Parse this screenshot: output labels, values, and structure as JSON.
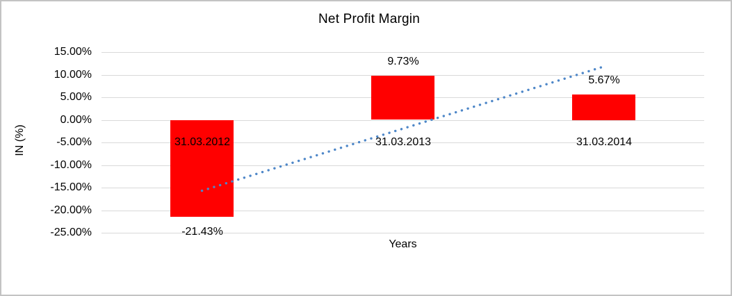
{
  "chart_data": {
    "type": "bar",
    "title": "Net Profit Margin",
    "xlabel": "Years",
    "ylabel": "IN (%)",
    "categories": [
      "31.03.2012",
      "31.03.2013",
      "31.03.2014"
    ],
    "values": [
      -21.43,
      9.73,
      5.67
    ],
    "data_labels": [
      "-21.43%",
      "9.73%",
      "5.67%"
    ],
    "ytick_labels": [
      "15.00%",
      "10.00%",
      "5.00%",
      "0.00%",
      "-5.00%",
      "-10.00%",
      "-15.00%",
      "-20.00%",
      "-25.00%"
    ],
    "ytick_values": [
      15,
      10,
      5,
      0,
      -5,
      -10,
      -15,
      -20,
      -25
    ],
    "ylim": [
      -25,
      15
    ],
    "grid": true,
    "legend": false,
    "bar_color": "#FF0000",
    "gridline_color": "#D9D9D9",
    "text_color": "#000000",
    "background_color": "#FFFFFF",
    "border_color": "#C3C3C3",
    "trendline": {
      "type": "linear",
      "style": "dotted",
      "color": "#4E87C8",
      "start_value": -15.7,
      "end_value": 11.8
    }
  }
}
